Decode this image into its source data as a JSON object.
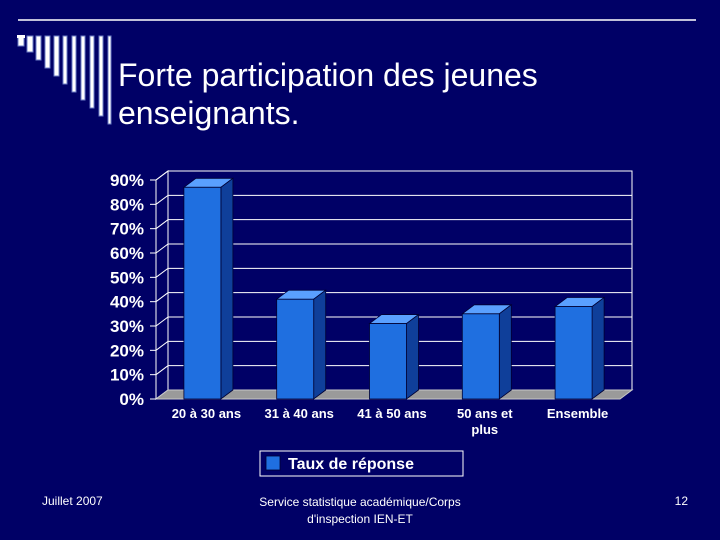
{
  "slide": {
    "title_line1": "Forte participation des jeunes",
    "title_line2": "enseignants."
  },
  "chart_data": {
    "type": "bar",
    "categories": [
      "20 à 30 ans",
      "31 à 40 ans",
      "41 à 50 ans",
      "50 ans et plus",
      "Ensemble"
    ],
    "category_lines": [
      [
        "20 à 30 ans"
      ],
      [
        "31 à 40 ans"
      ],
      [
        "41 à 50 ans"
      ],
      [
        "50 ans et",
        "plus"
      ],
      [
        "Ensemble"
      ]
    ],
    "series": [
      {
        "name": "Taux de réponse",
        "values": [
          0.87,
          0.41,
          0.31,
          0.35,
          0.38
        ]
      }
    ],
    "ylim": [
      0,
      0.9
    ],
    "yticks": [
      0,
      0.1,
      0.2,
      0.3,
      0.4,
      0.5,
      0.6,
      0.7,
      0.8,
      0.9
    ],
    "ytick_labels": [
      "0%",
      "10%",
      "20%",
      "30%",
      "40%",
      "50%",
      "60%",
      "70%",
      "80%",
      "90%"
    ],
    "grid": true,
    "legend_position": "bottom",
    "bar_color": "#1f6fe0",
    "title": "",
    "xlabel": "",
    "ylabel": ""
  },
  "footer": {
    "date": "Juillet 2007",
    "source": "Service statistique académique/Corps d'inspection IEN-ET",
    "page": "12"
  }
}
